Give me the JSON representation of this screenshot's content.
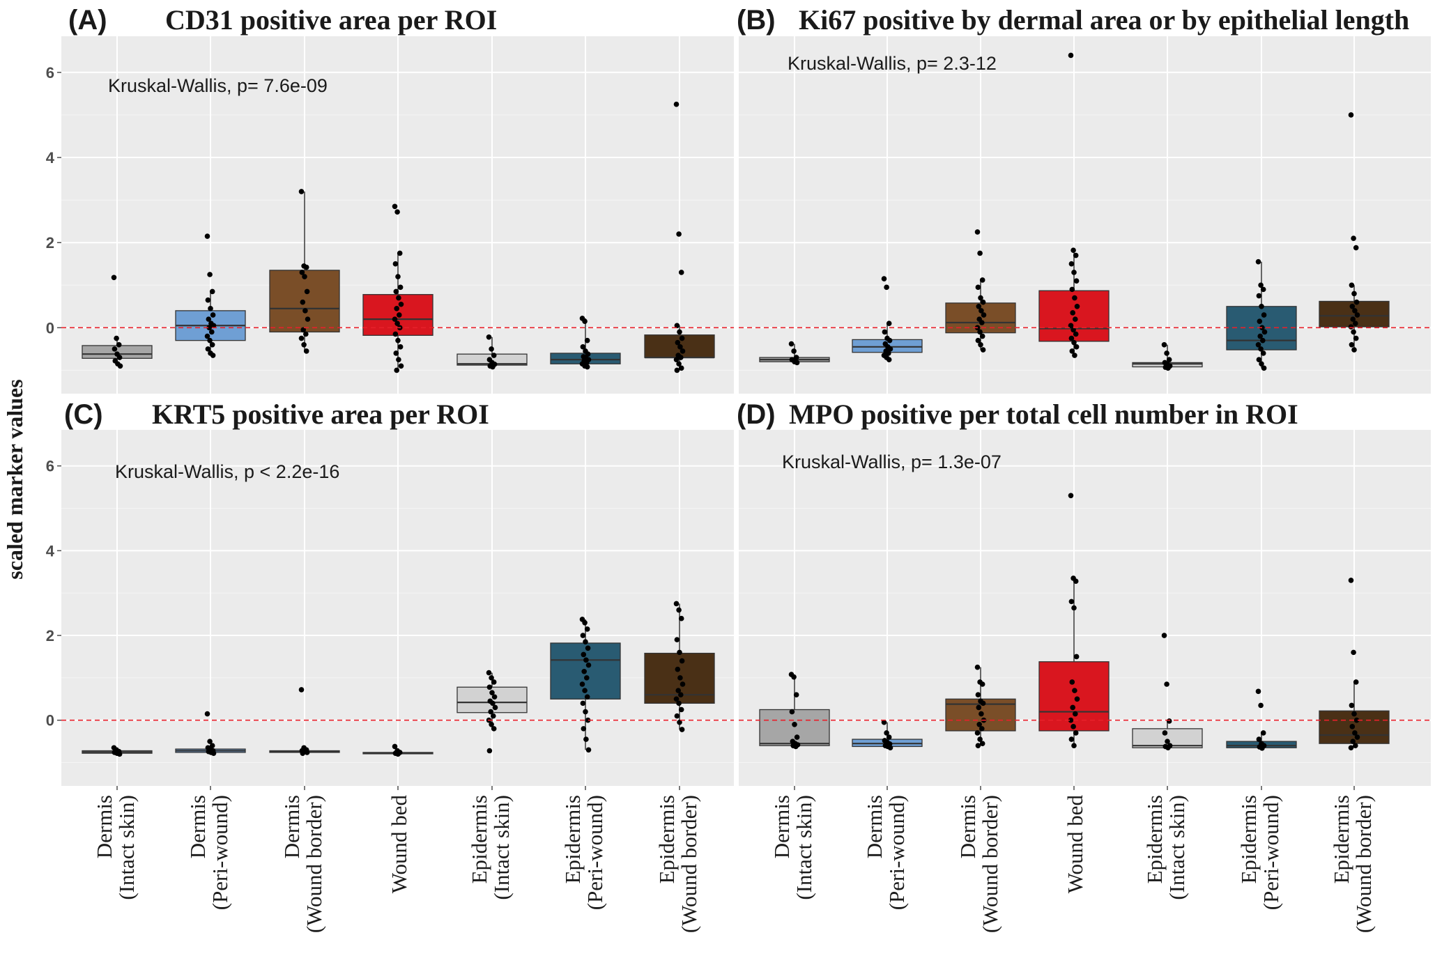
{
  "figure": {
    "ylabel": "scaled marker values"
  },
  "axis": {
    "ylim": [
      -1.55,
      6.85
    ],
    "yticks": [
      0,
      2,
      4,
      6
    ],
    "reference_line": 0
  },
  "colors": {
    "panel_bg": "#ebebeb",
    "grid_major": "#ffffff",
    "grid_minor": "#f5f5f5",
    "reference": "#e8202a",
    "Dermis (Intact skin)": "#a6a6a6",
    "Dermis (Peri-wound)": "#6f9fd4",
    "Dermis (Wound border)": "#7a4e28",
    "Wound bed": "#d9161f",
    "Epidermis (Intact skin)": "#d2d2d2",
    "Epidermis (Peri-wound)": "#295b72",
    "Epidermis (Wound border)": "#4a3016"
  },
  "categories": [
    {
      "line1": "Dermis",
      "line2": "(Intact skin)"
    },
    {
      "line1": "Dermis",
      "line2": "(Peri-wound)"
    },
    {
      "line1": "Dermis",
      "line2": "(Wound border)"
    },
    {
      "line1": "Wound bed",
      "line2": ""
    },
    {
      "line1": "Epidermis",
      "line2": "(Intact skin)"
    },
    {
      "line1": "Epidermis",
      "line2": "(Peri-wound)"
    },
    {
      "line1": "Epidermis",
      "line2": "(Wound border)"
    }
  ],
  "chart_data": [
    {
      "type": "box",
      "letter": "(A)",
      "title": "CD31 positive area per ROI",
      "annotation": "Kruskal-Wallis, p= 7.6e-09",
      "boxes": [
        {
          "category": "Dermis (Intact skin)",
          "q1": -0.72,
          "median": -0.62,
          "q3": -0.42,
          "whisker_low": -0.9,
          "whisker_high": -0.25,
          "points": [
            1.18,
            -0.25,
            -0.4,
            -0.5,
            -0.62,
            -0.7,
            -0.78,
            -0.85,
            -0.9
          ]
        },
        {
          "category": "Dermis (Peri-wound)",
          "q1": -0.3,
          "median": 0.05,
          "q3": 0.4,
          "whisker_low": -0.65,
          "whisker_high": 0.85,
          "points": [
            2.15,
            1.25,
            0.85,
            0.65,
            0.45,
            0.3,
            0.2,
            0.1,
            0.05,
            0.0,
            -0.1,
            -0.2,
            -0.3,
            -0.4,
            -0.5,
            -0.6,
            -0.65
          ]
        },
        {
          "category": "Dermis (Wound border)",
          "q1": -0.1,
          "median": 0.45,
          "q3": 1.35,
          "whisker_low": -0.55,
          "whisker_high": 3.2,
          "points": [
            3.2,
            1.45,
            1.42,
            1.3,
            1.2,
            0.85,
            0.6,
            0.4,
            0.2,
            -0.05,
            -0.15,
            -0.25,
            -0.4,
            -0.55
          ]
        },
        {
          "category": "Wound bed",
          "q1": -0.18,
          "median": 0.2,
          "q3": 0.78,
          "whisker_low": -1.0,
          "whisker_high": 1.75,
          "points": [
            2.85,
            2.72,
            1.75,
            1.5,
            1.2,
            0.95,
            0.85,
            0.7,
            0.55,
            0.45,
            0.3,
            0.2,
            0.1,
            0.0,
            -0.15,
            -0.3,
            -0.45,
            -0.6,
            -0.75,
            -0.9,
            -1.0
          ]
        },
        {
          "category": "Epidermis (Intact skin)",
          "q1": -0.88,
          "median": -0.85,
          "q3": -0.62,
          "whisker_low": -0.92,
          "whisker_high": -0.22,
          "points": [
            -0.22,
            -0.5,
            -0.65,
            -0.75,
            -0.82,
            -0.86,
            -0.9,
            -0.92
          ]
        },
        {
          "category": "Epidermis (Peri-wound)",
          "q1": -0.85,
          "median": -0.75,
          "q3": -0.6,
          "whisker_low": -0.92,
          "whisker_high": 0.22,
          "points": [
            0.22,
            0.15,
            -0.3,
            -0.45,
            -0.55,
            -0.62,
            -0.68,
            -0.72,
            -0.75,
            -0.78,
            -0.82,
            -0.85,
            -0.9,
            -0.92
          ]
        },
        {
          "category": "Epidermis (Wound border)",
          "q1": -0.7,
          "median": -0.7,
          "q3": -0.17,
          "whisker_low": -1.0,
          "whisker_high": 0.05,
          "points": [
            5.25,
            2.2,
            1.3,
            0.05,
            -0.1,
            -0.25,
            -0.35,
            -0.45,
            -0.55,
            -0.65,
            -0.7,
            -0.75,
            -0.85,
            -0.95,
            -1.0
          ]
        }
      ]
    },
    {
      "type": "box",
      "letter": "(B)",
      "title": "Ki67 positive by dermal area or by epithelial length",
      "annotation": "Kruskal-Wallis, p= 2.3-12",
      "boxes": [
        {
          "category": "Dermis (Intact skin)",
          "q1": -0.8,
          "median": -0.75,
          "q3": -0.7,
          "whisker_low": -0.82,
          "whisker_high": -0.38,
          "points": [
            -0.38,
            -0.55,
            -0.7,
            -0.75,
            -0.8,
            -0.82
          ]
        },
        {
          "category": "Dermis (Peri-wound)",
          "q1": -0.58,
          "median": -0.45,
          "q3": -0.28,
          "whisker_low": -0.75,
          "whisker_high": 0.1,
          "points": [
            1.15,
            0.95,
            0.1,
            -0.1,
            -0.25,
            -0.3,
            -0.38,
            -0.45,
            -0.5,
            -0.55,
            -0.6,
            -0.65,
            -0.7,
            -0.75
          ]
        },
        {
          "category": "Dermis (Wound border)",
          "q1": -0.12,
          "median": 0.12,
          "q3": 0.58,
          "whisker_low": -0.52,
          "whisker_high": 1.12,
          "points": [
            2.25,
            1.75,
            1.12,
            0.95,
            0.7,
            0.6,
            0.5,
            0.4,
            0.3,
            0.2,
            0.12,
            0.0,
            -0.1,
            -0.2,
            -0.3,
            -0.4,
            -0.52
          ]
        },
        {
          "category": "Wound bed",
          "q1": -0.32,
          "median": -0.02,
          "q3": 0.87,
          "whisker_low": -0.65,
          "whisker_high": 1.82,
          "points": [
            6.4,
            1.82,
            1.7,
            1.5,
            1.3,
            1.1,
            0.9,
            0.7,
            0.5,
            0.35,
            0.2,
            0.05,
            -0.05,
            -0.15,
            -0.25,
            -0.35,
            -0.45,
            -0.55,
            -0.65
          ]
        },
        {
          "category": "Epidermis (Intact skin)",
          "q1": -0.92,
          "median": -0.85,
          "q3": -0.82,
          "whisker_low": -0.95,
          "whisker_high": -0.4,
          "points": [
            -0.4,
            -0.6,
            -0.75,
            -0.82,
            -0.86,
            -0.9,
            -0.93,
            -0.95
          ]
        },
        {
          "category": "Epidermis (Peri-wound)",
          "q1": -0.52,
          "median": -0.3,
          "q3": 0.5,
          "whisker_low": -0.95,
          "whisker_high": 1.55,
          "points": [
            1.55,
            1.0,
            0.9,
            0.75,
            0.5,
            0.3,
            0.15,
            0.0,
            -0.1,
            -0.2,
            -0.3,
            -0.4,
            -0.5,
            -0.6,
            -0.75,
            -0.85,
            -0.95
          ]
        },
        {
          "category": "Epidermis (Wound border)",
          "q1": 0.02,
          "median": 0.28,
          "q3": 0.62,
          "whisker_low": -0.52,
          "whisker_high": 1.0,
          "points": [
            5.0,
            2.1,
            1.88,
            1.0,
            0.8,
            0.6,
            0.5,
            0.4,
            0.3,
            0.2,
            0.1,
            0.02,
            -0.1,
            -0.25,
            -0.4,
            -0.52
          ]
        }
      ]
    },
    {
      "type": "box",
      "letter": "(C)",
      "title": "KRT5 positive area per ROI",
      "annotation": "Kruskal-Wallis, p < 2.2e-16",
      "boxes": [
        {
          "category": "Dermis (Intact skin)",
          "q1": -0.78,
          "median": -0.75,
          "q3": -0.72,
          "whisker_low": -0.8,
          "whisker_high": -0.65,
          "points": [
            -0.65,
            -0.7,
            -0.74,
            -0.76,
            -0.78,
            -0.8
          ]
        },
        {
          "category": "Dermis (Peri-wound)",
          "q1": -0.76,
          "median": -0.72,
          "q3": -0.68,
          "whisker_low": -0.78,
          "whisker_high": -0.6,
          "points": [
            0.15,
            -0.5,
            -0.6,
            -0.65,
            -0.7,
            -0.72,
            -0.74,
            -0.76,
            -0.78
          ]
        },
        {
          "category": "Dermis (Wound border)",
          "q1": -0.76,
          "median": -0.74,
          "q3": -0.72,
          "whisker_low": -0.78,
          "whisker_high": -0.68,
          "points": [
            0.72,
            -0.65,
            -0.7,
            -0.72,
            -0.74,
            -0.76,
            -0.78
          ]
        },
        {
          "category": "Wound bed",
          "q1": -0.78,
          "median": -0.78,
          "q3": -0.76,
          "whisker_low": -0.8,
          "whisker_high": -0.74,
          "points": [
            -0.62,
            -0.72,
            -0.76,
            -0.78,
            -0.8
          ]
        },
        {
          "category": "Epidermis (Intact skin)",
          "q1": 0.18,
          "median": 0.42,
          "q3": 0.78,
          "whisker_low": -0.2,
          "whisker_high": 1.12,
          "points": [
            1.12,
            1.0,
            0.9,
            0.78,
            0.65,
            0.55,
            0.45,
            0.4,
            0.3,
            0.2,
            0.1,
            0.0,
            -0.1,
            -0.2,
            -0.72
          ]
        },
        {
          "category": "Epidermis (Peri-wound)",
          "q1": 0.5,
          "median": 1.42,
          "q3": 1.82,
          "whisker_low": -0.7,
          "whisker_high": 2.38,
          "points": [
            2.38,
            2.3,
            2.15,
            2.0,
            1.85,
            1.7,
            1.55,
            1.42,
            1.3,
            1.15,
            1.0,
            0.85,
            0.7,
            0.55,
            0.4,
            0.2,
            0.0,
            -0.2,
            -0.45,
            -0.7
          ]
        },
        {
          "category": "Epidermis (Wound border)",
          "q1": 0.4,
          "median": 0.6,
          "q3": 1.58,
          "whisker_low": -0.22,
          "whisker_high": 2.75,
          "points": [
            2.75,
            2.6,
            2.4,
            1.9,
            1.6,
            1.4,
            1.2,
            1.0,
            0.85,
            0.7,
            0.6,
            0.5,
            0.4,
            0.25,
            0.1,
            -0.05,
            -0.22
          ]
        }
      ]
    },
    {
      "type": "box",
      "letter": "(D)",
      "title": "MPO positive per total cell number in ROI",
      "annotation": "Kruskal-Wallis, p= 1.3e-07",
      "boxes": [
        {
          "category": "Dermis (Intact skin)",
          "q1": -0.6,
          "median": -0.55,
          "q3": 0.25,
          "whisker_low": -0.62,
          "whisker_high": 1.08,
          "points": [
            1.08,
            1.02,
            0.6,
            0.2,
            -0.1,
            -0.4,
            -0.5,
            -0.55,
            -0.58,
            -0.6,
            -0.62
          ]
        },
        {
          "category": "Dermis (Peri-wound)",
          "q1": -0.62,
          "median": -0.55,
          "q3": -0.45,
          "whisker_low": -0.65,
          "whisker_high": -0.05,
          "points": [
            -0.05,
            -0.3,
            -0.4,
            -0.48,
            -0.52,
            -0.56,
            -0.6,
            -0.62,
            -0.65
          ]
        },
        {
          "category": "Dermis (Wound border)",
          "q1": -0.25,
          "median": 0.38,
          "q3": 0.5,
          "whisker_low": -0.6,
          "whisker_high": 1.25,
          "points": [
            1.25,
            0.9,
            0.85,
            0.6,
            0.45,
            0.4,
            0.3,
            0.15,
            0.0,
            -0.1,
            -0.2,
            -0.3,
            -0.45,
            -0.55,
            -0.6
          ]
        },
        {
          "category": "Wound bed",
          "q1": -0.25,
          "median": 0.2,
          "q3": 1.38,
          "whisker_low": -0.6,
          "whisker_high": 3.35,
          "points": [
            5.3,
            3.35,
            3.28,
            2.8,
            2.65,
            1.5,
            0.9,
            0.7,
            0.5,
            0.3,
            0.15,
            0.0,
            -0.15,
            -0.3,
            -0.45,
            -0.6
          ]
        },
        {
          "category": "Epidermis (Intact skin)",
          "q1": -0.65,
          "median": -0.6,
          "q3": -0.2,
          "whisker_low": -0.65,
          "whisker_high": -0.02,
          "points": [
            2.0,
            0.85,
            -0.02,
            -0.3,
            -0.5,
            -0.6,
            -0.62,
            -0.65
          ]
        },
        {
          "category": "Epidermis (Peri-wound)",
          "q1": -0.65,
          "median": -0.6,
          "q3": -0.5,
          "whisker_low": -0.66,
          "whisker_high": -0.3,
          "points": [
            0.68,
            0.35,
            -0.3,
            -0.45,
            -0.55,
            -0.6,
            -0.63,
            -0.66
          ]
        },
        {
          "category": "Epidermis (Wound border)",
          "q1": -0.55,
          "median": -0.35,
          "q3": 0.22,
          "whisker_low": -0.65,
          "whisker_high": 0.9,
          "points": [
            3.3,
            1.6,
            0.9,
            0.35,
            0.15,
            0.0,
            -0.15,
            -0.3,
            -0.4,
            -0.5,
            -0.6,
            -0.65
          ]
        }
      ]
    }
  ]
}
